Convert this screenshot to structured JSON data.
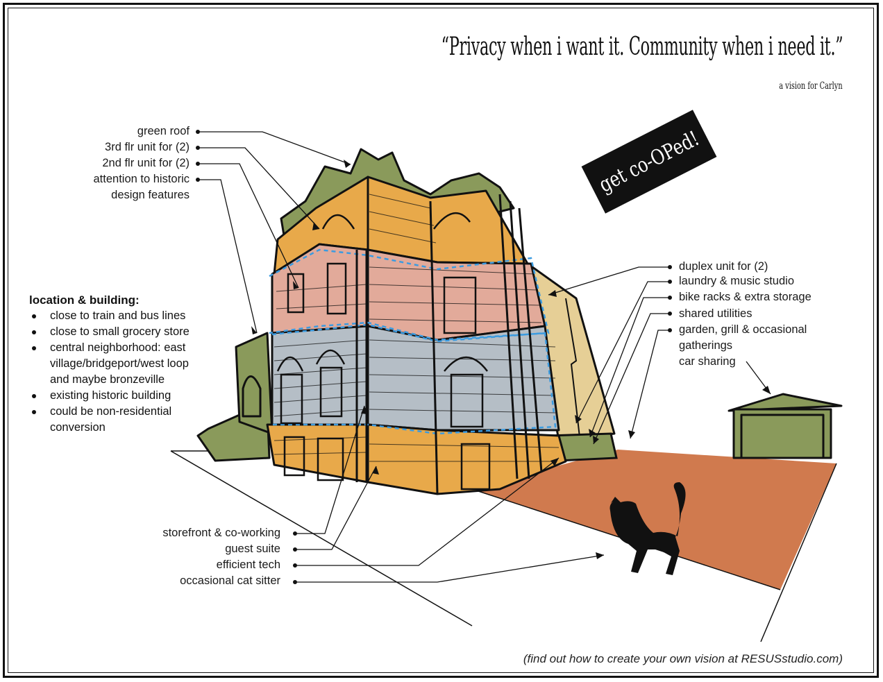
{
  "title": {
    "quote": "“Privacy when i want it.  Community when i need it.”",
    "subtitle": "a vision for Carlyn"
  },
  "badge": {
    "text": "get co-OPed!",
    "bg": "#111111",
    "fg": "#ffffff"
  },
  "labels_left": [
    "green roof",
    "3rd flr unit for (2)",
    "2nd flr unit for (2)",
    "attention to historic",
    "design features"
  ],
  "labels_right": [
    "duplex unit for (2)",
    "laundry & music studio",
    "bike racks & extra storage",
    "shared utilities",
    "garden, grill & occasional",
    "gatherings",
    "car sharing"
  ],
  "labels_bottom": [
    "storefront & co-working",
    "guest suite",
    "efficient tech",
    "occasional cat sitter"
  ],
  "location": {
    "heading": "location & building:",
    "items": [
      [
        "close to train and bus lines"
      ],
      [
        "close to small grocery store"
      ],
      [
        "central neighborhood: east",
        "village/bridgeport/west loop",
        "and maybe bronzeville"
      ],
      [
        "existing historic building"
      ],
      [
        "could be non-residential",
        "conversion"
      ]
    ]
  },
  "footer": "(find out how to create your own vision at RESUSstudio.com)",
  "colors": {
    "roof_green": "#8a9a5b",
    "unit_3rd_orange": "#e8a94a",
    "unit_2nd_pink": "#e2aa9a",
    "storefront_blue": "#b5bec6",
    "duplex_tan": "#e6cf96",
    "yard_terracotta": "#d07a4e",
    "dash_blue": "#3b9be0"
  },
  "icons": [
    "cat-silhouette",
    "garage",
    "leader-dot"
  ]
}
